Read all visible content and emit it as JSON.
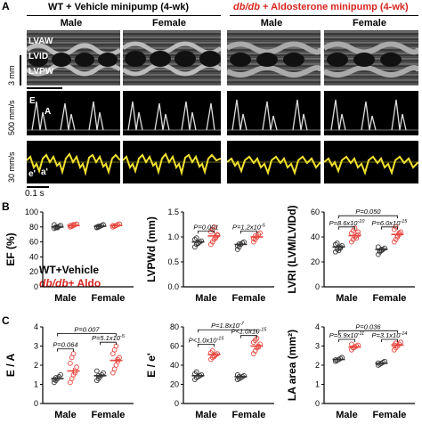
{
  "panel_a": {
    "letter": "A",
    "groups": [
      {
        "title_plain": "WT + Vehicle minipump (4-wk)",
        "title_italic": "",
        "color": "#000000"
      },
      {
        "title_plain": " + Aldosterone minipump (4-wk)",
        "title_italic": "db/db",
        "color": "#d6261f"
      }
    ],
    "sexes": [
      "Male",
      "Female",
      "Male",
      "Female"
    ],
    "mmode_labels": [
      "LVAW",
      "LVID",
      "LVPW"
    ],
    "scale_mmode": "3 mm",
    "scale_doppler": "500 mm/s",
    "scale_tissue": "30 mm/s",
    "time_scale": "0.1 s",
    "doppler_labels": [
      "E",
      "A"
    ],
    "tissue_labels": [
      "e'",
      "a'"
    ]
  },
  "panel_b": {
    "letter": "B",
    "legend_wt": "WT+Vehicle",
    "legend_db_italic": "db/db",
    "legend_db_rest": "+ Aldo"
  },
  "panel_c": {
    "letter": "C"
  },
  "chart_data": [
    {
      "type": "scatter",
      "id": "ef",
      "ylabel": "EF (%)",
      "ylim": [
        0,
        100
      ],
      "yticks": [
        0,
        20,
        40,
        60,
        80,
        100
      ],
      "categories": [
        "Male",
        "Female"
      ],
      "series": [
        {
          "group": "WT",
          "color": "#333333",
          "means": [
            80,
            81
          ],
          "sem": [
            1,
            1
          ],
          "points": [
            [
              78,
              79,
              80,
              81,
              82,
              83,
              80,
              79
            ],
            [
              79,
              80,
              81,
              82,
              83,
              80,
              81
            ]
          ]
        },
        {
          "group": "db",
          "color": "#e8463f",
          "means": [
            82,
            82
          ],
          "sem": [
            1,
            1
          ],
          "points": [
            [
              80,
              81,
              82,
              83,
              84,
              82,
              81,
              83
            ],
            [
              80,
              81,
              82,
              83,
              84,
              82,
              81
            ]
          ]
        }
      ],
      "annotations": []
    },
    {
      "type": "scatter",
      "id": "lvpwd",
      "ylabel": "LVPWd (mm)",
      "ylim": [
        0,
        1.5
      ],
      "yticks": [
        0.0,
        0.5,
        1.0,
        1.5
      ],
      "categories": [
        "Male",
        "Female"
      ],
      "series": [
        {
          "group": "WT",
          "color": "#333333",
          "means": [
            0.9,
            0.85
          ],
          "sem": [
            0.02,
            0.02
          ],
          "points": [
            [
              0.8,
              0.85,
              0.88,
              0.9,
              0.92,
              0.95,
              0.98,
              0.87
            ],
            [
              0.75,
              0.8,
              0.85,
              0.88,
              0.9,
              0.82,
              0.86
            ]
          ]
        },
        {
          "group": "db",
          "color": "#e8463f",
          "means": [
            1.02,
            1.0
          ],
          "sem": [
            0.03,
            0.02
          ],
          "points": [
            [
              0.85,
              0.9,
              0.95,
              1.0,
              1.05,
              1.1,
              1.15,
              1.2,
              0.98,
              1.03
            ],
            [
              0.9,
              0.95,
              1.0,
              1.05,
              1.08,
              0.97,
              1.02,
              1.0
            ]
          ]
        }
      ],
      "annotations": [
        {
          "text": "P=0.001",
          "cat": 0,
          "y": 1.12
        },
        {
          "text": "P=1.2x10",
          "sup": "-5",
          "cat": 1,
          "y": 1.12
        }
      ]
    },
    {
      "type": "scatter",
      "id": "lvri",
      "ylabel": "LVRI (LVM/LVIDd)",
      "ylim": [
        0,
        60
      ],
      "yticks": [
        0,
        20,
        40,
        60
      ],
      "categories": [
        "Male",
        "Female"
      ],
      "series": [
        {
          "group": "WT",
          "color": "#333333",
          "means": [
            32,
            30
          ],
          "sem": [
            0.8,
            0.8
          ],
          "points": [
            [
              28,
              30,
              31,
              32,
              33,
              34,
              35,
              29,
              31
            ],
            [
              26,
              28,
              29,
              30,
              31,
              32,
              29,
              30
            ]
          ]
        },
        {
          "group": "db",
          "color": "#e8463f",
          "means": [
            41,
            42
          ],
          "sem": [
            1,
            1
          ],
          "points": [
            [
              36,
              38,
              40,
              41,
              42,
              43,
              45,
              47,
              39,
              44
            ],
            [
              36,
              38,
              40,
              42,
              44,
              46,
              48,
              41,
              43
            ]
          ]
        }
      ],
      "annotations": [
        {
          "text": "P=8.6x10",
          "sup": "-10",
          "cat": 0,
          "y": 48
        },
        {
          "text": "P=6.0x10",
          "sup": "-15",
          "cat": 1,
          "y": 48
        },
        {
          "text": "P=0.050",
          "span": [
            0,
            1
          ],
          "y": 57
        }
      ]
    },
    {
      "type": "scatter",
      "id": "ea",
      "ylabel": "E / A",
      "ylim": [
        0,
        4
      ],
      "yticks": [
        0,
        1,
        2,
        3,
        4
      ],
      "categories": [
        "Male",
        "Female"
      ],
      "series": [
        {
          "group": "WT",
          "color": "#333333",
          "means": [
            1.3,
            1.45
          ],
          "sem": [
            0.05,
            0.06
          ],
          "points": [
            [
              1.1,
              1.2,
              1.3,
              1.4,
              1.5,
              1.25,
              1.35
            ],
            [
              1.2,
              1.3,
              1.4,
              1.5,
              1.6,
              1.7,
              1.45
            ]
          ]
        },
        {
          "group": "db",
          "color": "#e8463f",
          "means": [
            1.7,
            2.25
          ],
          "sem": [
            0.15,
            0.15
          ],
          "points": [
            [
              1.1,
              1.3,
              1.5,
              1.7,
              1.9,
              2.1,
              2.4,
              2.6,
              1.6
            ],
            [
              1.6,
              1.8,
              2.0,
              2.2,
              2.4,
              2.6,
              2.8,
              3.0,
              2.3
            ]
          ]
        }
      ],
      "annotations": [
        {
          "text": "P=0.064",
          "cat": 0,
          "y": 2.85
        },
        {
          "text": "P=5.1x10",
          "sup": "-5",
          "cat": 1,
          "y": 3.2
        },
        {
          "text": "P=0.007",
          "span": [
            0,
            1
          ],
          "y": 3.65
        }
      ]
    },
    {
      "type": "scatter",
      "id": "ee",
      "ylabel": "E / e'",
      "ylim": [
        0,
        80
      ],
      "yticks": [
        0,
        20,
        40,
        60,
        80
      ],
      "categories": [
        "Male",
        "Female"
      ],
      "series": [
        {
          "group": "WT",
          "color": "#333333",
          "means": [
            29,
            28
          ],
          "sem": [
            1,
            1
          ],
          "points": [
            [
              25,
              27,
              28,
              29,
              30,
              31,
              33,
              28
            ],
            [
              25,
              26,
              27,
              28,
              29,
              30,
              28
            ]
          ]
        },
        {
          "group": "db",
          "color": "#e8463f",
          "means": [
            51,
            60
          ],
          "sem": [
            1.5,
            2
          ],
          "points": [
            [
              46,
              48,
              50,
              51,
              52,
              53,
              55,
              49
            ],
            [
              52,
              55,
              58,
              60,
              62,
              64,
              66,
              68,
              59
            ]
          ]
        }
      ],
      "annotations": [
        {
          "text": "P<1.0x10",
          "sup": "-15",
          "cat": 0,
          "y": 62
        },
        {
          "text": "P<1.0x10",
          "sup": "-15",
          "cat": 1,
          "y": 71
        },
        {
          "text": "P=1.8x10",
          "sup": "-7",
          "span": [
            0,
            1
          ],
          "y": 77
        }
      ]
    },
    {
      "type": "scatter",
      "id": "la",
      "ylabel": "LA area (mm²)",
      "ylim": [
        0,
        4
      ],
      "yticks": [
        0,
        1,
        2,
        3,
        4
      ],
      "categories": [
        "Male",
        "Female"
      ],
      "series": [
        {
          "group": "WT",
          "color": "#333333",
          "means": [
            2.3,
            2.1
          ],
          "sem": [
            0.03,
            0.03
          ],
          "points": [
            [
              2.2,
              2.25,
              2.3,
              2.35,
              2.4,
              2.28
            ],
            [
              2.0,
              2.05,
              2.1,
              2.15,
              2.2,
              2.12
            ]
          ]
        },
        {
          "group": "db",
          "color": "#e8463f",
          "means": [
            2.95,
            3.05
          ],
          "sem": [
            0.05,
            0.05
          ],
          "points": [
            [
              2.8,
              2.9,
              2.95,
              3.0,
              3.05,
              3.1,
              2.92
            ],
            [
              2.8,
              2.9,
              3.0,
              3.1,
              3.2,
              3.05,
              3.15
            ]
          ]
        }
      ],
      "annotations": [
        {
          "text": "P=5.9x10",
          "sup": "-11",
          "cat": 0,
          "y": 3.35
        },
        {
          "text": "P=3.1x10",
          "sup": "-14",
          "cat": 1,
          "y": 3.35
        },
        {
          "text": "P=0.036",
          "span": [
            0,
            1
          ],
          "y": 3.8
        }
      ]
    }
  ]
}
